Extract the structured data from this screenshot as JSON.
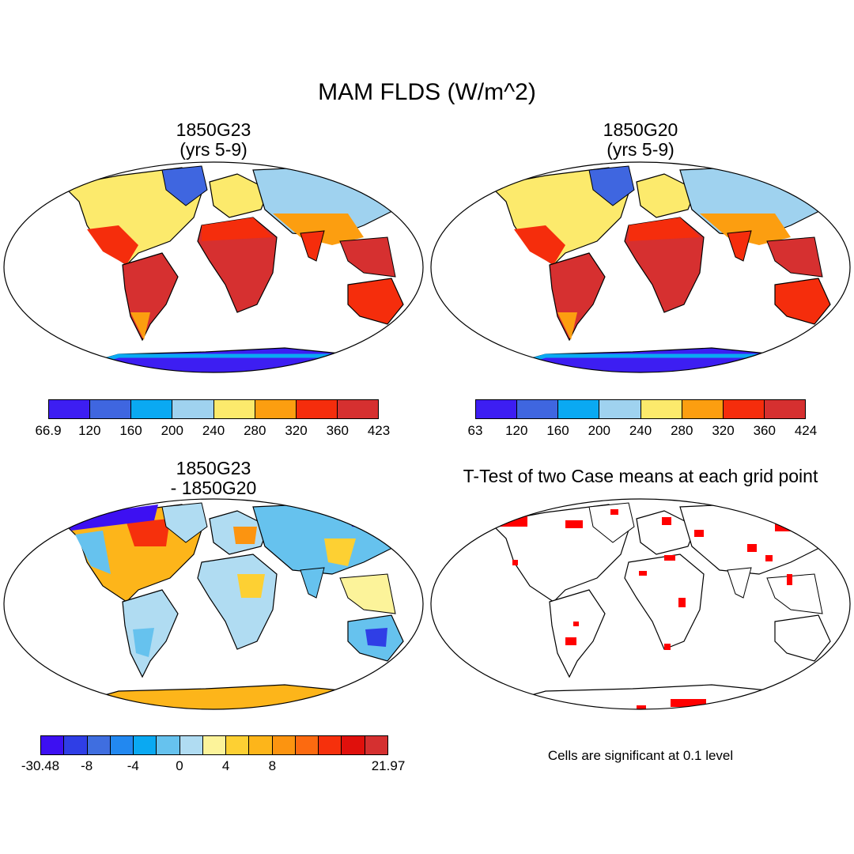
{
  "title": "MAM FLDS (W/m^2)",
  "panels": [
    {
      "line1": "1850G23",
      "line2": "(yrs 5-9)"
    },
    {
      "line1": "1850G20",
      "line2": "(yrs 5-9)"
    },
    {
      "line1": "1850G23",
      "line2": "- 1850G20"
    },
    {
      "line1": "T-Test of two Case means at each grid point",
      "line2": ""
    }
  ],
  "colorbars": [
    {
      "colors": [
        "#3d1ef2",
        "#3f66e0",
        "#0aa9f2",
        "#9fd2ef",
        "#fcea6c",
        "#fc9e10",
        "#f52d0c",
        "#d63030"
      ],
      "labels": [
        "66.9",
        "120",
        "160",
        "200",
        "240",
        "280",
        "320",
        "360",
        "423"
      ]
    },
    {
      "colors": [
        "#3d1ef2",
        "#3f66e0",
        "#0aa9f2",
        "#9fd2ef",
        "#fcea6c",
        "#fc9e10",
        "#f52d0c",
        "#d63030"
      ],
      "labels": [
        "63",
        "120",
        "160",
        "200",
        "240",
        "280",
        "320",
        "360",
        "424"
      ]
    },
    {
      "colors": [
        "#3d10f2",
        "#2f3ee6",
        "#3f6ee0",
        "#2288f0",
        "#0aa9f2",
        "#66c2ee",
        "#b0dcf2",
        "#fcf39a",
        "#fdd033",
        "#fdb51a",
        "#fc9410",
        "#fc6a10",
        "#f6300c",
        "#e0100c",
        "#d53030"
      ],
      "labels": [
        "-30.48",
        "",
        "-8",
        "",
        "-4",
        "",
        "0",
        "",
        "4",
        "",
        "8",
        "",
        "",
        "",
        "",
        "21.97"
      ]
    }
  ],
  "significance_color": "#ff0000",
  "significance_note": "Cells are significant at 0.1 level"
}
